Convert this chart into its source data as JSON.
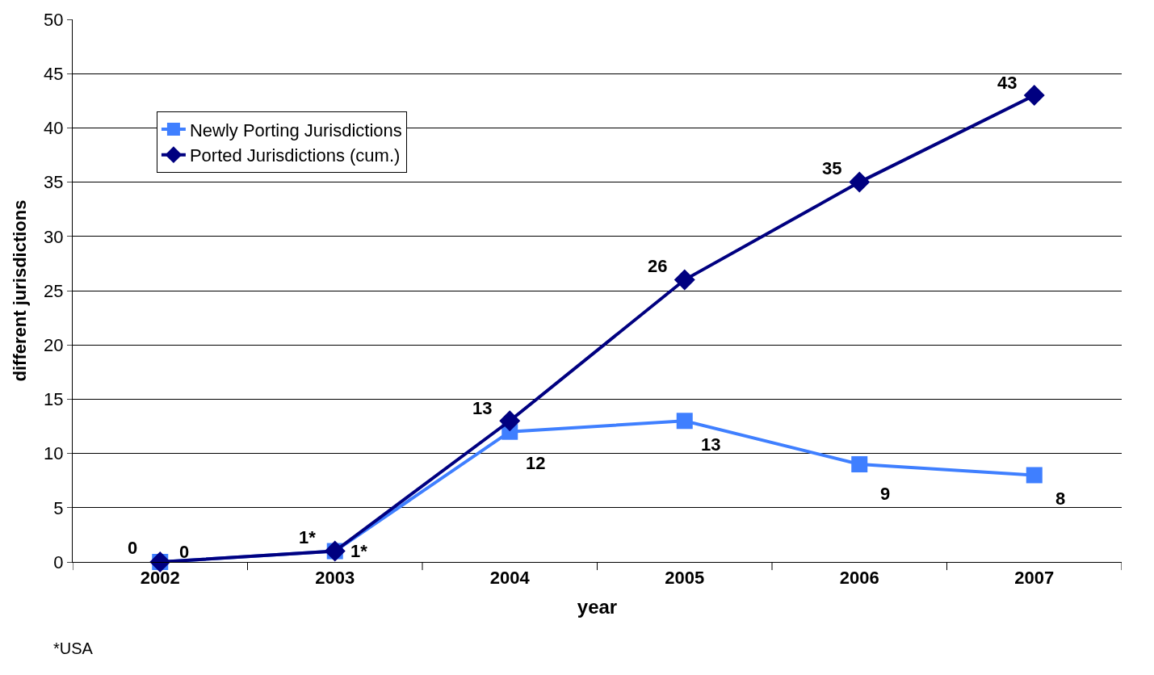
{
  "chart_data": {
    "type": "line",
    "xlabel": "year",
    "ylabel": "different jurisdictions",
    "categories": [
      "2002",
      "2003",
      "2004",
      "2005",
      "2006",
      "2007"
    ],
    "series": [
      {
        "name": "Newly Porting Jurisdictions",
        "color": "#3f7fff",
        "marker": "square",
        "values": [
          0,
          1,
          12,
          13,
          9,
          8
        ],
        "value_labels": [
          "0",
          "1*",
          "12",
          "13",
          "9",
          "8"
        ]
      },
      {
        "name": "Ported Jurisdictions (cum.)",
        "color": "#000080",
        "marker": "diamond",
        "values": [
          0,
          1,
          13,
          26,
          35,
          43
        ],
        "value_labels": [
          "0",
          "1*",
          "13",
          "26",
          "35",
          "43"
        ]
      }
    ],
    "ylim": [
      0,
      50
    ],
    "yticks": [
      0,
      5,
      10,
      15,
      20,
      25,
      30,
      35,
      40,
      45,
      50
    ],
    "grid": "y",
    "legend": "top left",
    "line_style": "solid",
    "annotations": [
      "*USA"
    ]
  }
}
